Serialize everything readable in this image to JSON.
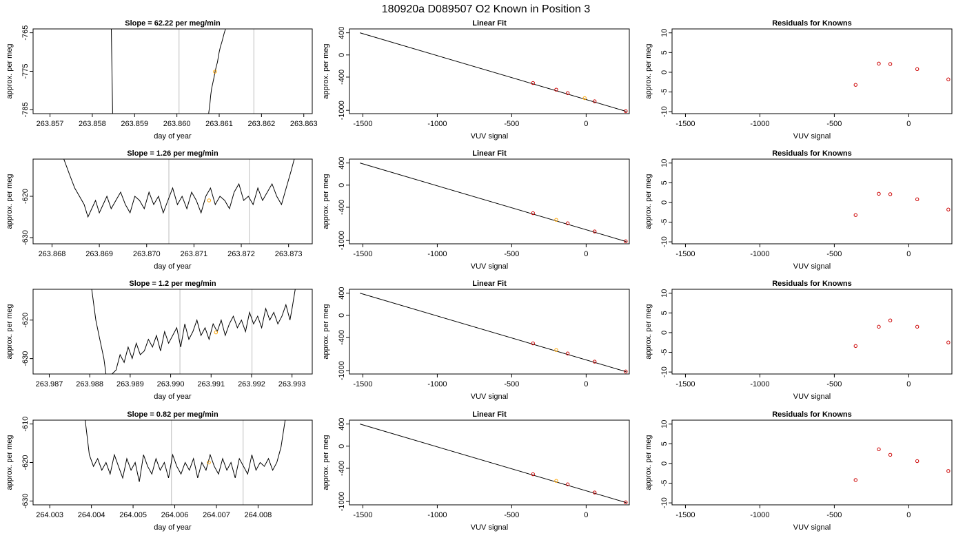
{
  "figure_title": "180920a     D089507   O2 Known in Position  3",
  "colors": {
    "trace": "#000000",
    "current_point": "#FFA500",
    "fit_points": "#CC0000",
    "marker_lines": "#C8C8C8",
    "fit_line": "#000000"
  },
  "chart_data": [
    {
      "type": "line",
      "title": "Slope =  62.22  per meg/min",
      "xlabel": "day of year",
      "ylabel": "approx. per meg",
      "xlim": [
        263.8566,
        263.8632
      ],
      "ylim": [
        -786,
        -764
      ],
      "xticks": [
        "263.857",
        "263.858",
        "263.859",
        "263.860",
        "263.861",
        "263.862",
        "263.863"
      ],
      "yticks": [
        "-765",
        "-775",
        "-785"
      ],
      "markers_x": [
        263.86005,
        263.86182
      ],
      "series": [
        {
          "x": [
            263.85845,
            263.85848
          ],
          "y": [
            -764,
            -786
          ]
        },
        {
          "x": [
            263.86075,
            263.86078,
            263.8608,
            263.86082,
            263.86085,
            263.86088,
            263.8609,
            263.86093,
            263.86096,
            263.86098,
            263.861,
            263.86103,
            263.86106,
            263.86109,
            263.86112,
            263.86115
          ],
          "y": [
            -786,
            -783.5,
            -781.2,
            -779.5,
            -778,
            -776.5,
            -775.2,
            -773.8,
            -772.6,
            -771.2,
            -770,
            -768.6,
            -767.5,
            -766.3,
            -765,
            -764
          ]
        }
      ],
      "points": [
        {
          "x": 263.8609,
          "y": -775.1
        }
      ]
    },
    {
      "type": "scatter",
      "title": "Linear Fit",
      "xlabel": "VUV signal",
      "ylabel": "approx. per meg",
      "xlim": [
        -1590,
        290
      ],
      "ylim": [
        -1060,
        470
      ],
      "xticks": [
        "-1500",
        "-1000",
        "-500",
        "0"
      ],
      "yticks": [
        "400",
        "0",
        "-400",
        "-1000"
      ],
      "fit_line": {
        "x": [
          -1520,
          270
        ],
        "y": [
          400,
          -1020
        ]
      },
      "points": [
        {
          "x": -357,
          "y": -507,
          "current": false
        },
        {
          "x": -201,
          "y": -627,
          "current": false
        },
        {
          "x": -124,
          "y": -690,
          "current": false
        },
        {
          "x": -10,
          "y": -780,
          "current": true
        },
        {
          "x": 57,
          "y": -837,
          "current": false
        },
        {
          "x": 266,
          "y": -1015,
          "current": false
        }
      ]
    },
    {
      "type": "scatter",
      "title": "Residuals for Knowns",
      "xlabel": "VUV signal",
      "ylabel": "approx. per meg",
      "xlim": [
        -1590,
        290
      ],
      "ylim": [
        -10.5,
        11
      ],
      "xticks": [
        "-1500",
        "-1000",
        "-500",
        "0"
      ],
      "yticks": [
        "10",
        "5",
        "0",
        "-5",
        "-10"
      ],
      "points": [
        {
          "x": -357,
          "y": -3.2
        },
        {
          "x": -201,
          "y": 2.2
        },
        {
          "x": -124,
          "y": 2.1
        },
        {
          "x": 57,
          "y": 0.8
        },
        {
          "x": 266,
          "y": -1.8
        }
      ]
    },
    {
      "type": "line",
      "title": "Slope =  1.26  per meg/min",
      "xlabel": "day of year",
      "ylabel": "approx. per meg",
      "xlim": [
        263.8676,
        263.8735
      ],
      "ylim": [
        -631.5,
        -611
      ],
      "xticks": [
        "263.868",
        "263.869",
        "263.870",
        "263.871",
        "263.872",
        "263.873"
      ],
      "yticks": [
        "-620",
        "-630"
      ],
      "markers_x": [
        263.87047,
        263.87217
      ],
      "series": [
        {
          "x": [
            263.86825,
            263.86838,
            263.86848,
            263.86858,
            263.86868,
            263.86876,
            263.86884,
            263.86892,
            263.869,
            263.86908,
            263.86916,
            263.86925,
            263.86935,
            263.86945,
            263.86955,
            263.86965,
            263.86975,
            263.86985,
            263.86995,
            263.87005,
            263.87015,
            263.87025,
            263.87035,
            263.87045,
            263.87055,
            263.87065,
            263.87075,
            263.87085,
            263.87095,
            263.87105,
            263.87115,
            263.87125,
            263.87135,
            263.87145,
            263.87155,
            263.87165,
            263.87175,
            263.87185,
            263.87195,
            263.87205,
            263.87215,
            263.87225,
            263.87235,
            263.87245,
            263.87255,
            263.87265,
            263.87275,
            263.87285,
            263.87295,
            263.87305,
            263.87312
          ],
          "y": [
            -611,
            -615,
            -618,
            -620,
            -622,
            -625,
            -623,
            -621,
            -624,
            -622,
            -620,
            -623,
            -621,
            -619,
            -622,
            -624,
            -620,
            -621,
            -623,
            -619,
            -622,
            -620,
            -624,
            -621,
            -618,
            -622,
            -620,
            -623,
            -619,
            -621,
            -624,
            -620,
            -618,
            -622,
            -620,
            -621,
            -623,
            -619,
            -617,
            -621,
            -620,
            -622,
            -618,
            -621,
            -619,
            -617,
            -620,
            -622,
            -618,
            -614,
            -611
          ]
        }
      ],
      "points": [
        {
          "x": 263.87132,
          "y": -621.0
        }
      ]
    },
    {
      "type": "scatter",
      "title": "Linear Fit",
      "xlabel": "VUV signal",
      "ylabel": "approx. per meg",
      "xlim": [
        -1590,
        290
      ],
      "ylim": [
        -1060,
        470
      ],
      "xticks": [
        "-1500",
        "-1000",
        "-500",
        "0"
      ],
      "yticks": [
        "400",
        "0",
        "-400",
        "-1000"
      ],
      "fit_line": {
        "x": [
          -1520,
          270
        ],
        "y": [
          400,
          -1020
        ]
      },
      "points": [
        {
          "x": -357,
          "y": -507,
          "current": false
        },
        {
          "x": -201,
          "y": -627,
          "current": true
        },
        {
          "x": -124,
          "y": -690,
          "current": false
        },
        {
          "x": 57,
          "y": -837,
          "current": false
        },
        {
          "x": 266,
          "y": -1015,
          "current": false
        }
      ]
    },
    {
      "type": "scatter",
      "title": "Residuals for Knowns",
      "xlabel": "VUV signal",
      "ylabel": "approx. per meg",
      "xlim": [
        -1590,
        290
      ],
      "ylim": [
        -10.5,
        11
      ],
      "xticks": [
        "-1500",
        "-1000",
        "-500",
        "0"
      ],
      "yticks": [
        "10",
        "5",
        "0",
        "-5",
        "-10"
      ],
      "points": [
        {
          "x": -357,
          "y": -3.2
        },
        {
          "x": -201,
          "y": 2.2
        },
        {
          "x": -124,
          "y": 2.1
        },
        {
          "x": 57,
          "y": 0.8
        },
        {
          "x": 266,
          "y": -1.8
        }
      ]
    },
    {
      "type": "line",
      "title": "Slope =  1.2  per meg/min",
      "xlabel": "day of year",
      "ylabel": "approx. per meg",
      "xlim": [
        263.9866,
        263.9935
      ],
      "ylim": [
        -634,
        -612
      ],
      "xticks": [
        "263.987",
        "263.988",
        "263.989",
        "263.990",
        "263.991",
        "263.992",
        "263.993"
      ],
      "yticks": [
        "-620",
        "-630"
      ],
      "markers_x": [
        263.99023,
        263.99201
      ],
      "series": [
        {
          "x": [
            263.98805,
            263.98815,
            263.98825,
            263.98835,
            263.9884,
            263.98855,
            263.98865,
            263.98875,
            263.98885,
            263.98895,
            263.98905,
            263.98915,
            263.98925,
            263.98935,
            263.98945,
            263.98955,
            263.98965,
            263.98975,
            263.98985,
            263.98995,
            263.99005,
            263.99015,
            263.99025,
            263.99035,
            263.99045,
            263.99055,
            263.99065,
            263.99075,
            263.99085,
            263.99095,
            263.99105,
            263.99115,
            263.99125,
            263.99135,
            263.99145,
            263.99155,
            263.99165,
            263.99175,
            263.99185,
            263.99195,
            263.99205,
            263.99215,
            263.99225,
            263.99235,
            263.99245,
            263.99255,
            263.99265,
            263.99275,
            263.99285,
            263.99295,
            263.993,
            263.99308
          ],
          "y": [
            -612,
            -620,
            -625,
            -630,
            -634,
            -634,
            -633,
            -629,
            -631,
            -627,
            -630,
            -626,
            -629,
            -628,
            -625,
            -627,
            -624,
            -628,
            -623,
            -626,
            -624,
            -622,
            -627,
            -621,
            -625,
            -623,
            -620,
            -624,
            -622,
            -625,
            -621,
            -623,
            -620,
            -624,
            -621,
            -619,
            -622,
            -620,
            -623,
            -618,
            -621,
            -619,
            -622,
            -617,
            -620,
            -618,
            -621,
            -619,
            -616,
            -620,
            -617,
            -612
          ]
        }
      ],
      "points": [
        {
          "x": 263.99112,
          "y": -623.2
        }
      ]
    },
    {
      "type": "scatter",
      "title": "Linear Fit",
      "xlabel": "VUV signal",
      "ylabel": "approx. per meg",
      "xlim": [
        -1590,
        290
      ],
      "ylim": [
        -1060,
        470
      ],
      "xticks": [
        "-1500",
        "-1000",
        "-500",
        "0"
      ],
      "yticks": [
        "400",
        "0",
        "-400",
        "-1000"
      ],
      "fit_line": {
        "x": [
          -1520,
          270
        ],
        "y": [
          400,
          -1020
        ]
      },
      "points": [
        {
          "x": -357,
          "y": -507,
          "current": false
        },
        {
          "x": -201,
          "y": -627,
          "current": true
        },
        {
          "x": -124,
          "y": -690,
          "current": false
        },
        {
          "x": 57,
          "y": -837,
          "current": false
        },
        {
          "x": 266,
          "y": -1015,
          "current": false
        }
      ]
    },
    {
      "type": "scatter",
      "title": "Residuals for Knowns",
      "xlabel": "VUV signal",
      "ylabel": "approx. per meg",
      "xlim": [
        -1590,
        290
      ],
      "ylim": [
        -10.5,
        11
      ],
      "xticks": [
        "-1500",
        "-1000",
        "-500",
        "0"
      ],
      "yticks": [
        "10",
        "5",
        "0",
        "-5",
        "-10"
      ],
      "points": [
        {
          "x": -357,
          "y": -3.4
        },
        {
          "x": -201,
          "y": 1.5
        },
        {
          "x": -124,
          "y": 3.1
        },
        {
          "x": 57,
          "y": 1.5
        },
        {
          "x": 266,
          "y": -2.5
        }
      ]
    },
    {
      "type": "line",
      "title": "Slope =  0.82  per meg/min",
      "xlabel": "day of year",
      "ylabel": "approx. per meg",
      "xlim": [
        264.0026,
        264.0093
      ],
      "ylim": [
        -631,
        -609
      ],
      "xticks": [
        "264.003",
        "264.004",
        "264.005",
        "264.006",
        "264.007",
        "264.008"
      ],
      "yticks": [
        "-610",
        "-620",
        "-630"
      ],
      "markers_x": [
        264.00592,
        264.00764
      ],
      "series": [
        {
          "x": [
            264.00385,
            264.00395,
            264.00405,
            264.00415,
            264.00425,
            264.00435,
            264.00445,
            264.00455,
            264.00465,
            264.00475,
            264.00485,
            264.00495,
            264.00505,
            264.00515,
            264.00525,
            264.00535,
            264.00545,
            264.00555,
            264.00565,
            264.00575,
            264.00585,
            264.00595,
            264.00605,
            264.00615,
            264.00625,
            264.00635,
            264.00645,
            264.00655,
            264.00665,
            264.00675,
            264.00685,
            264.00695,
            264.00705,
            264.00715,
            264.00725,
            264.00735,
            264.00745,
            264.00755,
            264.00765,
            264.00775,
            264.00785,
            264.00795,
            264.00805,
            264.00815,
            264.00825,
            264.00835,
            264.00845,
            264.00855,
            264.00865
          ],
          "y": [
            -609,
            -618,
            -621,
            -619,
            -622,
            -620,
            -623,
            -618,
            -621,
            -624,
            -619,
            -622,
            -620,
            -625,
            -618,
            -621,
            -623,
            -619,
            -622,
            -620,
            -624,
            -618,
            -621,
            -623,
            -620,
            -622,
            -619,
            -624,
            -620,
            -622,
            -618,
            -621,
            -623,
            -619,
            -622,
            -620,
            -624,
            -619,
            -621,
            -623,
            -618,
            -622,
            -620,
            -621,
            -619,
            -622,
            -620,
            -616,
            -609
          ]
        }
      ],
      "points": [
        {
          "x": 264.00682,
          "y": -620.0
        }
      ]
    },
    {
      "type": "scatter",
      "title": "Linear Fit",
      "xlabel": "VUV signal",
      "ylabel": "approx. per meg",
      "xlim": [
        -1590,
        290
      ],
      "ylim": [
        -1060,
        470
      ],
      "xticks": [
        "-1500",
        "-1000",
        "-500",
        "0"
      ],
      "yticks": [
        "400",
        "0",
        "-400",
        "-1000"
      ],
      "fit_line": {
        "x": [
          -1520,
          270
        ],
        "y": [
          400,
          -1020
        ]
      },
      "points": [
        {
          "x": -357,
          "y": -507,
          "current": false
        },
        {
          "x": -201,
          "y": -627,
          "current": true
        },
        {
          "x": -124,
          "y": -690,
          "current": false
        },
        {
          "x": 57,
          "y": -837,
          "current": false
        },
        {
          "x": 266,
          "y": -1015,
          "current": false
        }
      ]
    },
    {
      "type": "scatter",
      "title": "Residuals for Knowns",
      "xlabel": "VUV signal",
      "ylabel": "approx. per meg",
      "xlim": [
        -1590,
        290
      ],
      "ylim": [
        -10.5,
        11
      ],
      "xticks": [
        "-1500",
        "-1000",
        "-500",
        "0"
      ],
      "yticks": [
        "10",
        "5",
        "0",
        "-5",
        "-10"
      ],
      "points": [
        {
          "x": -357,
          "y": -4.2
        },
        {
          "x": -201,
          "y": 3.6
        },
        {
          "x": -124,
          "y": 2.2
        },
        {
          "x": 57,
          "y": 0.6
        },
        {
          "x": 266,
          "y": -1.9
        }
      ]
    }
  ]
}
